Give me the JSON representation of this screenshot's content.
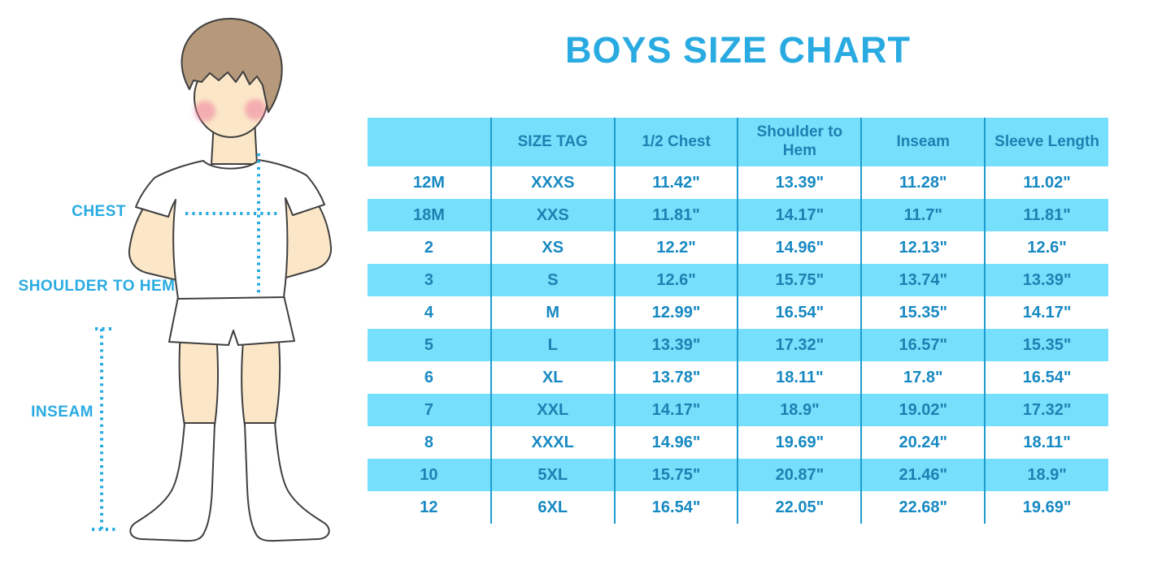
{
  "title": "BOYS SIZE CHART",
  "figure_labels": {
    "chest": "CHEST",
    "shoulder_to_hem": "SHOULDER TO HEM",
    "inseam": "INSEAM"
  },
  "colors": {
    "accent_blue": "#29ABE2",
    "table_fill_blue": "#76E0FC",
    "divider_blue": "#1E9CCF",
    "cell_text_blue": "#1789C2",
    "cell_text_dark_blue": "#1F80B2",
    "skin": "#FBE7C8",
    "hair_brown": "#B5997A",
    "blush_pink": "#F2A7BB"
  },
  "chart_data": {
    "type": "table",
    "title": "BOYS SIZE CHART",
    "columns": [
      "",
      "SIZE TAG",
      "1/2 Chest",
      "Shoulder to Hem",
      "Inseam",
      "Sleeve Length"
    ],
    "rows": [
      [
        "12M",
        "XXXS",
        "11.42\"",
        "13.39\"",
        "11.28\"",
        "11.02\""
      ],
      [
        "18M",
        "XXS",
        "11.81\"",
        "14.17\"",
        "11.7\"",
        "11.81\""
      ],
      [
        "2",
        "XS",
        "12.2\"",
        "14.96\"",
        "12.13\"",
        "12.6\""
      ],
      [
        "3",
        "S",
        "12.6\"",
        "15.75\"",
        "13.74\"",
        "13.39\""
      ],
      [
        "4",
        "M",
        "12.99\"",
        "16.54\"",
        "15.35\"",
        "14.17\""
      ],
      [
        "5",
        "L",
        "13.39\"",
        "17.32\"",
        "16.57\"",
        "15.35\""
      ],
      [
        "6",
        "XL",
        "13.78\"",
        "18.11\"",
        "17.8\"",
        "16.54\""
      ],
      [
        "7",
        "XXL",
        "14.17\"",
        "18.9\"",
        "19.02\"",
        "17.32\""
      ],
      [
        "8",
        "XXXL",
        "14.96\"",
        "19.69\"",
        "20.24\"",
        "18.11\""
      ],
      [
        "10",
        "5XL",
        "15.75\"",
        "20.87\"",
        "21.46\"",
        "18.9\""
      ],
      [
        "12",
        "6XL",
        "16.54\"",
        "22.05\"",
        "22.68\"",
        "19.69\""
      ]
    ]
  }
}
